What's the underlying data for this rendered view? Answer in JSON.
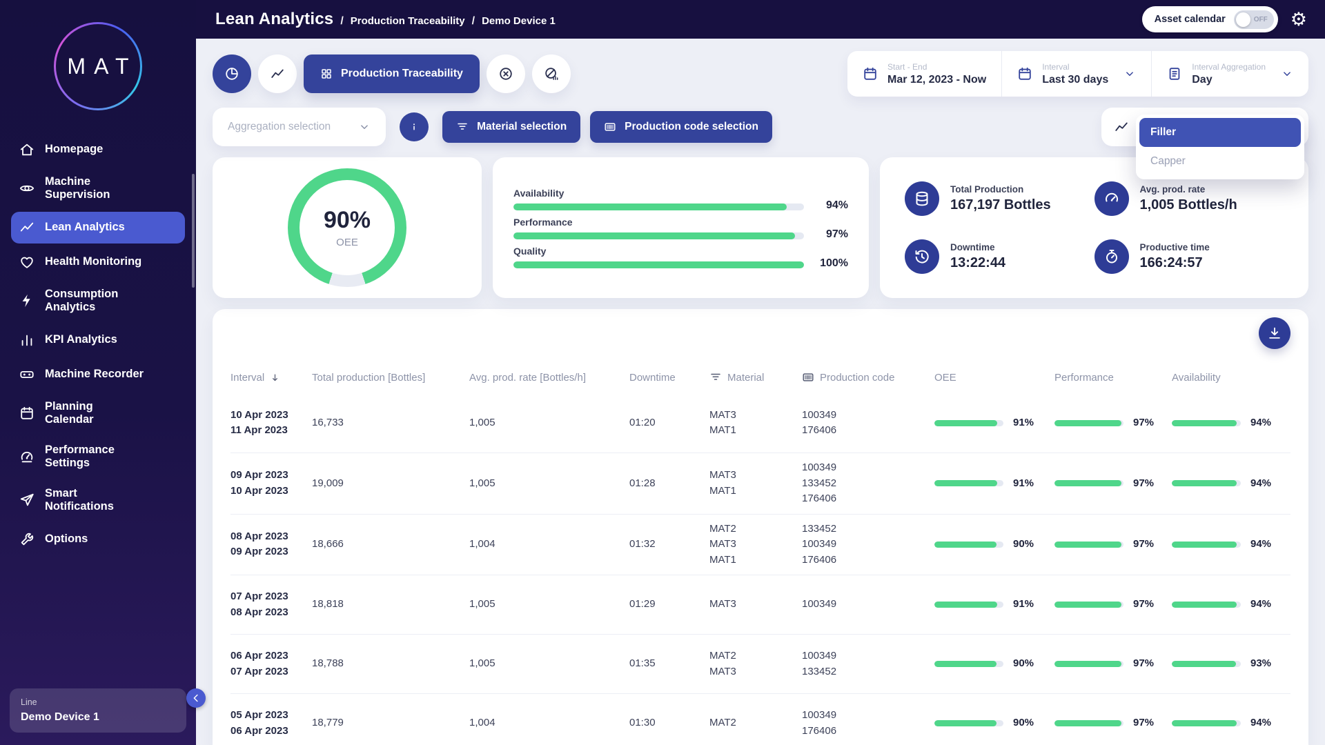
{
  "colors": {
    "accent_indigo": "#34439b",
    "accent_indigo_light": "#4a5ad0",
    "green": "#4fd68a",
    "sidebar_navy": "#171040"
  },
  "header": {
    "breadcrumb": [
      "Lean Analytics",
      "Production Traceability",
      "Demo Device 1"
    ],
    "asset_calendar_label": "Asset calendar",
    "asset_calendar_state": "OFF"
  },
  "sidebar": {
    "logo": "MAT",
    "items": [
      {
        "label": "Homepage",
        "icon": "home-icon",
        "active": false
      },
      {
        "label": "Machine\nSupervision",
        "icon": "eye-icon",
        "active": false
      },
      {
        "label": "Lean Analytics",
        "icon": "trend-icon",
        "active": true
      },
      {
        "label": "Health Monitoring",
        "icon": "heart-icon",
        "active": false
      },
      {
        "label": "Consumption\nAnalytics",
        "icon": "bolt-icon",
        "active": false
      },
      {
        "label": "KPI Analytics",
        "icon": "bar-chart-icon",
        "active": false
      },
      {
        "label": "Machine Recorder",
        "icon": "recorder-icon",
        "active": false
      },
      {
        "label": "Planning\nCalendar",
        "icon": "calendar-icon",
        "active": false
      },
      {
        "label": "Performance\nSettings",
        "icon": "gauge-gear-icon",
        "active": false
      },
      {
        "label": "Smart\nNotifications",
        "icon": "send-icon",
        "active": false
      },
      {
        "label": "Options",
        "icon": "wrench-icon",
        "active": false
      }
    ],
    "device": {
      "label": "Line",
      "value": "Demo Device 1"
    }
  },
  "toolbar": {
    "active_view_label": "Production Traceability",
    "date_range": {
      "label": "Start - End",
      "value": "Mar 12, 2023 - Now"
    },
    "interval": {
      "label": "Interval",
      "value": "Last 30 days"
    },
    "aggregation": {
      "label": "Interval Aggregation",
      "value": "Day"
    }
  },
  "filters": {
    "aggregation_placeholder": "Aggregation selection",
    "material_label": "Material selection",
    "production_code_label": "Production code selection",
    "machine_dropdown": {
      "selected": "Filler",
      "options": [
        "Filler",
        "Capper"
      ]
    }
  },
  "oee": {
    "value": 90,
    "unit": "%",
    "label": "OEE"
  },
  "metrics": {
    "bars": [
      {
        "label": "Availability",
        "value": 94
      },
      {
        "label": "Performance",
        "value": 97
      },
      {
        "label": "Quality",
        "value": 100
      }
    ]
  },
  "kpis": {
    "items": [
      {
        "label": "Total Production",
        "value": "167,197 Bottles",
        "icon": "database-icon"
      },
      {
        "label": "Avg. prod. rate",
        "value": "1,005 Bottles/h",
        "icon": "speedometer-icon"
      },
      {
        "label": "Downtime",
        "value": "13:22:44",
        "icon": "downtime-icon"
      },
      {
        "label": "Productive time",
        "value": "166:24:57",
        "icon": "stopwatch-icon"
      }
    ]
  },
  "table": {
    "columns": [
      "Interval",
      "Total production [Bottles]",
      "Avg. prod. rate [Bottles/h]",
      "Downtime",
      "Material",
      "Production code",
      "OEE",
      "Performance",
      "Availability"
    ],
    "rows": [
      {
        "interval": [
          "10 Apr 2023",
          "11 Apr 2023"
        ],
        "total": "16,733",
        "rate": "1,005",
        "downtime": "01:20",
        "materials": [
          "MAT3",
          "MAT1"
        ],
        "codes": [
          "100349",
          "176406"
        ],
        "oee": 91,
        "performance": 97,
        "availability": 94
      },
      {
        "interval": [
          "09 Apr 2023",
          "10 Apr 2023"
        ],
        "total": "19,009",
        "rate": "1,005",
        "downtime": "01:28",
        "materials": [
          "MAT3",
          "MAT1"
        ],
        "codes": [
          "100349",
          "133452",
          "176406"
        ],
        "oee": 91,
        "performance": 97,
        "availability": 94
      },
      {
        "interval": [
          "08 Apr 2023",
          "09 Apr 2023"
        ],
        "total": "18,666",
        "rate": "1,004",
        "downtime": "01:32",
        "materials": [
          "MAT2",
          "MAT3",
          "MAT1"
        ],
        "codes": [
          "133452",
          "100349",
          "176406"
        ],
        "oee": 90,
        "performance": 97,
        "availability": 94
      },
      {
        "interval": [
          "07 Apr 2023",
          "08 Apr 2023"
        ],
        "total": "18,818",
        "rate": "1,005",
        "downtime": "01:29",
        "materials": [
          "MAT3"
        ],
        "codes": [
          "100349"
        ],
        "oee": 91,
        "performance": 97,
        "availability": 94
      },
      {
        "interval": [
          "06 Apr 2023",
          "07 Apr 2023"
        ],
        "total": "18,788",
        "rate": "1,005",
        "downtime": "01:35",
        "materials": [
          "MAT2",
          "MAT3"
        ],
        "codes": [
          "100349",
          "133452"
        ],
        "oee": 90,
        "performance": 97,
        "availability": 93
      },
      {
        "interval": [
          "05 Apr 2023",
          "06 Apr 2023"
        ],
        "total": "18,779",
        "rate": "1,004",
        "downtime": "01:30",
        "materials": [
          "MAT2"
        ],
        "codes": [
          "100349",
          "176406"
        ],
        "oee": 90,
        "performance": 97,
        "availability": 94
      }
    ]
  }
}
